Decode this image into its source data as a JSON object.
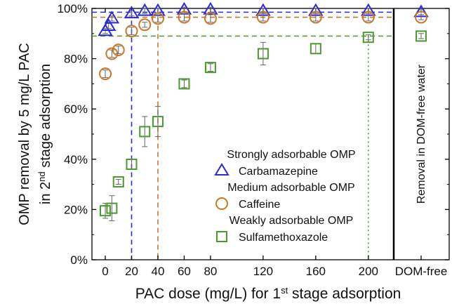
{
  "chart_data": {
    "type": "scatter",
    "xlabel_main": "PAC dose (mg/L) for 1",
    "xlabel_sup": "st",
    "xlabel_rest": " stage adsorption",
    "ylabel_line1": "OMP removal by 5 mg/L PAC",
    "ylabel_line2_pre": "in 2",
    "ylabel_line2_sup": "nd",
    "ylabel_line2_post": " stage adsorption",
    "x_ticks": [
      0,
      20,
      40,
      60,
      80,
      120,
      160,
      200
    ],
    "x_tick_labels": [
      "0",
      "20",
      "40",
      "60",
      "80",
      "120",
      "160",
      "200"
    ],
    "extra_category_label": "DOM-free",
    "y_ticks": [
      0,
      20,
      40,
      60,
      80,
      100
    ],
    "y_tick_labels": [
      "0%",
      "20%",
      "40%",
      "60%",
      "80%",
      "100%"
    ],
    "ylim": [
      0,
      100
    ],
    "grid": false,
    "legend_position": "center-right",
    "domfree_panel_label": "Removal in DOM-free water",
    "series": [
      {
        "group_label": "Strongly adsorbable OMP",
        "name": "Carbamazepine",
        "marker": "triangle",
        "color": "#2b2bd6",
        "dose_threshold": 20,
        "points": [
          {
            "x": 0,
            "y": 91,
            "err": 1
          },
          {
            "x": 2.5,
            "y": 93,
            "err": 1
          },
          {
            "x": 5,
            "y": 96,
            "err": 1
          },
          {
            "x": 20,
            "y": 98,
            "err": 1
          },
          {
            "x": 30,
            "y": 99,
            "err": 1
          },
          {
            "x": 40,
            "y": 99,
            "err": 1
          },
          {
            "x": 60,
            "y": 99.5,
            "err": 1
          },
          {
            "x": 80,
            "y": 99.5,
            "err": 1
          },
          {
            "x": 120,
            "y": 99,
            "err": 1
          },
          {
            "x": 160,
            "y": 99,
            "err": 1
          },
          {
            "x": 200,
            "y": 99,
            "err": 1
          }
        ],
        "domfree": 98.5
      },
      {
        "group_label": "Medium adsorbable OMP",
        "name": "Caffeine",
        "marker": "circle",
        "color": "#c8782a",
        "dose_threshold": 40,
        "points": [
          {
            "x": 0,
            "y": 74,
            "err": 1.5
          },
          {
            "x": 5,
            "y": 82,
            "err": 1.5
          },
          {
            "x": 10,
            "y": 83.5,
            "err": 1.5
          },
          {
            "x": 20,
            "y": 91,
            "err": 1.5
          },
          {
            "x": 30,
            "y": 93.5,
            "err": 1
          },
          {
            "x": 40,
            "y": 96,
            "err": 1.5
          },
          {
            "x": 60,
            "y": 96.5,
            "err": 1.5
          },
          {
            "x": 80,
            "y": 96,
            "err": 1.5
          },
          {
            "x": 120,
            "y": 96.5,
            "err": 1.5
          },
          {
            "x": 160,
            "y": 96.5,
            "err": 1.5
          },
          {
            "x": 200,
            "y": 96.5,
            "err": 1.5
          }
        ],
        "domfree": 96.5
      },
      {
        "group_label": "Weakly adsorbable OMP",
        "name": "Sulfamethoxazole",
        "marker": "square",
        "color": "#4a9a2e",
        "dose_threshold": 200,
        "points": [
          {
            "x": 0,
            "y": 19.5,
            "err": 3
          },
          {
            "x": 5,
            "y": 20.5,
            "err": 5
          },
          {
            "x": 10,
            "y": 31,
            "err": 1
          },
          {
            "x": 20,
            "y": 38,
            "err": 2
          },
          {
            "x": 30,
            "y": 51,
            "err": 6
          },
          {
            "x": 40,
            "y": 55,
            "err": 6
          },
          {
            "x": 60,
            "y": 70,
            "err": 1.5
          },
          {
            "x": 80,
            "y": 76.5,
            "err": 1.5
          },
          {
            "x": 120,
            "y": 82,
            "err": 4.5
          },
          {
            "x": 160,
            "y": 84,
            "err": 2
          },
          {
            "x": 200,
            "y": 88.5,
            "err": 1
          }
        ],
        "domfree": 89
      }
    ]
  }
}
